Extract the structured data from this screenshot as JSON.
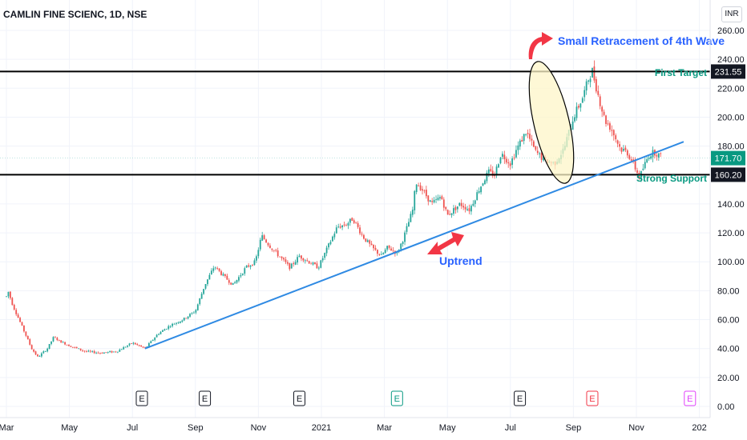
{
  "header": {
    "symbol_title": "CAMLIN FINE SCIENC, 1D, NSE",
    "currency": "INR"
  },
  "colors": {
    "up": "#26a69a",
    "down": "#ef5350",
    "trendline": "#2f8ae3",
    "label_green": "#089981",
    "label_blue": "#2962ff",
    "arrow_red": "#f23645",
    "ellipse_fill": "#fdf6c8"
  },
  "chart_data": {
    "type": "candlestick",
    "title": "CAMLIN FINE SCIENC, 1D, NSE",
    "y_ticks": [
      "0.00",
      "20.00",
      "40.00",
      "60.00",
      "80.00",
      "100.00",
      "120.00",
      "140.00",
      "160.00",
      "180.00",
      "200.00",
      "220.00",
      "240.00",
      "260.00"
    ],
    "ylim": [
      0,
      260
    ],
    "x_ticks": [
      "Mar",
      "May",
      "Jul",
      "Sep",
      "Nov",
      "2021",
      "Mar",
      "May",
      "Jul",
      "Sep",
      "Nov",
      "202"
    ],
    "price_labels": [
      {
        "text": "231.55",
        "value": 231.55,
        "style": "dark"
      },
      {
        "text": "171.70",
        "value": 171.7,
        "style": "green"
      },
      {
        "text": "160.20",
        "value": 160.2,
        "style": "dark"
      }
    ],
    "horizontal_lines": [
      {
        "value": 231.55
      },
      {
        "value": 160.2
      }
    ],
    "trendline": {
      "from": {
        "month": 6.4,
        "value": 40
      },
      "to": {
        "month": 23.5,
        "value": 183
      }
    },
    "annotations": [
      {
        "text": "Small Retracement of 4th Wave",
        "color": "blue"
      },
      {
        "text": "First Target",
        "color": "green"
      },
      {
        "text": "Strong Support",
        "color": "green"
      },
      {
        "text": "Uptrend",
        "color": "blue"
      }
    ],
    "earnings_markers": [
      {
        "label": "E",
        "month": 6.3,
        "style": "past"
      },
      {
        "label": "E",
        "month": 8.3,
        "style": "past"
      },
      {
        "label": "E",
        "month": 11.3,
        "style": "past"
      },
      {
        "label": "E",
        "month": 14.4,
        "style": "green"
      },
      {
        "label": "E",
        "month": 18.3,
        "style": "past"
      },
      {
        "label": "E",
        "month": 20.6,
        "style": "red"
      },
      {
        "label": "E",
        "month": 23.7,
        "style": "purple"
      }
    ],
    "price_path": [
      [
        2.0,
        76
      ],
      [
        2.05,
        80
      ],
      [
        2.2,
        70
      ],
      [
        2.5,
        55
      ],
      [
        2.8,
        40
      ],
      [
        3.0,
        34
      ],
      [
        3.3,
        40
      ],
      [
        3.5,
        48
      ],
      [
        3.7,
        45
      ],
      [
        4.0,
        42
      ],
      [
        4.5,
        38
      ],
      [
        5.0,
        37
      ],
      [
        5.5,
        38
      ],
      [
        6.0,
        44
      ],
      [
        6.4,
        40
      ],
      [
        6.8,
        50
      ],
      [
        7.2,
        56
      ],
      [
        7.6,
        60
      ],
      [
        8.0,
        66
      ],
      [
        8.3,
        84
      ],
      [
        8.6,
        97
      ],
      [
        8.9,
        90
      ],
      [
        9.2,
        84
      ],
      [
        9.6,
        96
      ],
      [
        9.9,
        100
      ],
      [
        10.1,
        118
      ],
      [
        10.4,
        110
      ],
      [
        10.7,
        103
      ],
      [
        11.0,
        96
      ],
      [
        11.3,
        104
      ],
      [
        11.6,
        100
      ],
      [
        11.9,
        96
      ],
      [
        12.2,
        110
      ],
      [
        12.5,
        124
      ],
      [
        12.8,
        126
      ],
      [
        13.0,
        130
      ],
      [
        13.3,
        118
      ],
      [
        13.6,
        110
      ],
      [
        13.9,
        104
      ],
      [
        14.1,
        110
      ],
      [
        14.4,
        106
      ],
      [
        14.6,
        116
      ],
      [
        14.9,
        136
      ],
      [
        15.0,
        155
      ],
      [
        15.2,
        150
      ],
      [
        15.5,
        140
      ],
      [
        15.8,
        145
      ],
      [
        16.0,
        132
      ],
      [
        16.4,
        140
      ],
      [
        16.7,
        136
      ],
      [
        17.0,
        150
      ],
      [
        17.3,
        162
      ],
      [
        17.5,
        160
      ],
      [
        17.7,
        175
      ],
      [
        18.0,
        168
      ],
      [
        18.2,
        178
      ],
      [
        18.5,
        190
      ],
      [
        18.8,
        176
      ],
      [
        19.1,
        170
      ],
      [
        19.4,
        168
      ],
      [
        19.7,
        178
      ],
      [
        20.0,
        200
      ],
      [
        20.3,
        214
      ],
      [
        20.5,
        228
      ],
      [
        20.6,
        232
      ],
      [
        20.8,
        214
      ],
      [
        21.0,
        198
      ],
      [
        21.2,
        192
      ],
      [
        21.5,
        178
      ],
      [
        21.7,
        176
      ],
      [
        21.9,
        168
      ],
      [
        22.1,
        158
      ],
      [
        22.2,
        164
      ],
      [
        22.4,
        174
      ],
      [
        22.6,
        176
      ],
      [
        22.8,
        172
      ]
    ]
  }
}
